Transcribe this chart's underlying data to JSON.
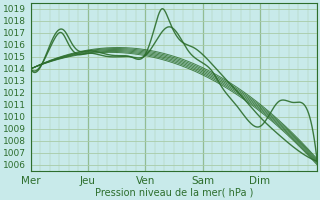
{
  "xlabel": "Pression niveau de la mer( hPa )",
  "bg_color": "#c8eaea",
  "grid_color": "#a8cca8",
  "line_color": "#2d6e2d",
  "ylim": [
    1005.5,
    1019.5
  ],
  "yticks": [
    1006,
    1007,
    1008,
    1009,
    1010,
    1011,
    1012,
    1013,
    1014,
    1015,
    1016,
    1017,
    1018,
    1019
  ],
  "day_labels": [
    "Mer",
    "Jeu",
    "Ven",
    "Sam",
    "Dim"
  ],
  "day_positions": [
    0,
    24,
    48,
    72,
    96
  ],
  "xlim": [
    0,
    120
  ],
  "series": [
    {
      "type": "smooth",
      "pts": [
        [
          0,
          1014.0
        ],
        [
          6,
          1014.8
        ],
        [
          10,
          1016.8
        ],
        [
          12,
          1017.2
        ],
        [
          15,
          1016.5
        ],
        [
          18,
          1015.8
        ],
        [
          24,
          1015.5
        ],
        [
          30,
          1015.2
        ],
        [
          36,
          1015.0
        ],
        [
          42,
          1014.8
        ],
        [
          48,
          1015.0
        ],
        [
          52,
          1017.2
        ],
        [
          55,
          1018.8
        ],
        [
          58,
          1017.5
        ],
        [
          62,
          1016.5
        ],
        [
          68,
          1015.5
        ],
        [
          72,
          1014.8
        ],
        [
          78,
          1013.5
        ],
        [
          84,
          1012.0
        ],
        [
          90,
          1010.5
        ],
        [
          96,
          1009.2
        ],
        [
          102,
          1008.0
        ],
        [
          108,
          1007.2
        ],
        [
          114,
          1006.5
        ],
        [
          120,
          1006.2
        ]
      ]
    },
    {
      "type": "smooth",
      "pts": [
        [
          0,
          1014.0
        ],
        [
          8,
          1015.5
        ],
        [
          12,
          1016.2
        ],
        [
          15,
          1015.8
        ],
        [
          18,
          1015.2
        ],
        [
          24,
          1015.3
        ],
        [
          36,
          1015.1
        ],
        [
          48,
          1015.0
        ],
        [
          55,
          1017.5
        ],
        [
          58,
          1018.5
        ],
        [
          62,
          1017.0
        ],
        [
          68,
          1016.0
        ],
        [
          72,
          1015.2
        ],
        [
          80,
          1013.8
        ],
        [
          88,
          1012.2
        ],
        [
          96,
          1010.8
        ],
        [
          104,
          1009.0
        ],
        [
          112,
          1007.5
        ],
        [
          120,
          1006.5
        ]
      ]
    },
    {
      "type": "smooth",
      "pts": [
        [
          0,
          1014.0
        ],
        [
          10,
          1015.0
        ],
        [
          24,
          1015.2
        ],
        [
          36,
          1015.0
        ],
        [
          48,
          1015.0
        ],
        [
          56,
          1016.0
        ],
        [
          60,
          1016.5
        ],
        [
          65,
          1015.8
        ],
        [
          72,
          1015.0
        ],
        [
          80,
          1013.5
        ],
        [
          88,
          1012.0
        ],
        [
          96,
          1010.2
        ],
        [
          104,
          1008.5
        ],
        [
          112,
          1007.2
        ],
        [
          120,
          1006.3
        ]
      ]
    },
    {
      "type": "smooth",
      "pts": [
        [
          0,
          1014.0
        ],
        [
          10,
          1015.0
        ],
        [
          24,
          1015.2
        ],
        [
          36,
          1015.0
        ],
        [
          48,
          1015.0
        ],
        [
          60,
          1015.2
        ],
        [
          72,
          1014.5
        ],
        [
          80,
          1013.0
        ],
        [
          88,
          1011.5
        ],
        [
          96,
          1010.0
        ],
        [
          104,
          1008.3
        ],
        [
          112,
          1007.0
        ],
        [
          120,
          1006.2
        ]
      ]
    },
    {
      "type": "smooth",
      "pts": [
        [
          0,
          1014.0
        ],
        [
          10,
          1015.0
        ],
        [
          24,
          1015.2
        ],
        [
          36,
          1015.0
        ],
        [
          48,
          1015.0
        ],
        [
          60,
          1015.0
        ],
        [
          72,
          1014.0
        ],
        [
          80,
          1012.5
        ],
        [
          88,
          1011.0
        ],
        [
          96,
          1009.5
        ],
        [
          104,
          1008.0
        ],
        [
          112,
          1007.0
        ],
        [
          120,
          1006.2
        ]
      ]
    },
    {
      "type": "smooth",
      "pts": [
        [
          0,
          1014.0
        ],
        [
          10,
          1015.0
        ],
        [
          24,
          1015.2
        ],
        [
          36,
          1015.0
        ],
        [
          48,
          1015.0
        ],
        [
          60,
          1014.8
        ],
        [
          72,
          1013.5
        ],
        [
          80,
          1012.0
        ],
        [
          88,
          1010.5
        ],
        [
          96,
          1009.0
        ],
        [
          104,
          1007.8
        ],
        [
          112,
          1007.0
        ],
        [
          120,
          1006.3
        ]
      ]
    },
    {
      "type": "smooth",
      "pts": [
        [
          0,
          1014.0
        ],
        [
          10,
          1015.0
        ],
        [
          24,
          1015.2
        ],
        [
          36,
          1015.0
        ],
        [
          48,
          1015.0
        ],
        [
          60,
          1014.5
        ],
        [
          72,
          1012.5
        ],
        [
          80,
          1010.8
        ],
        [
          88,
          1009.2
        ],
        [
          96,
          1007.8
        ],
        [
          104,
          1007.0
        ],
        [
          112,
          1006.5
        ],
        [
          120,
          1006.2
        ]
      ]
    },
    {
      "type": "smooth",
      "pts": [
        [
          0,
          1014.0
        ],
        [
          10,
          1015.0
        ],
        [
          24,
          1015.2
        ],
        [
          36,
          1015.0
        ],
        [
          48,
          1015.0
        ],
        [
          60,
          1014.2
        ],
        [
          72,
          1011.5
        ],
        [
          80,
          1009.5
        ],
        [
          88,
          1008.0
        ],
        [
          96,
          1007.0
        ],
        [
          104,
          1006.5
        ],
        [
          112,
          1006.2
        ],
        [
          120,
          1006.0
        ]
      ]
    }
  ]
}
